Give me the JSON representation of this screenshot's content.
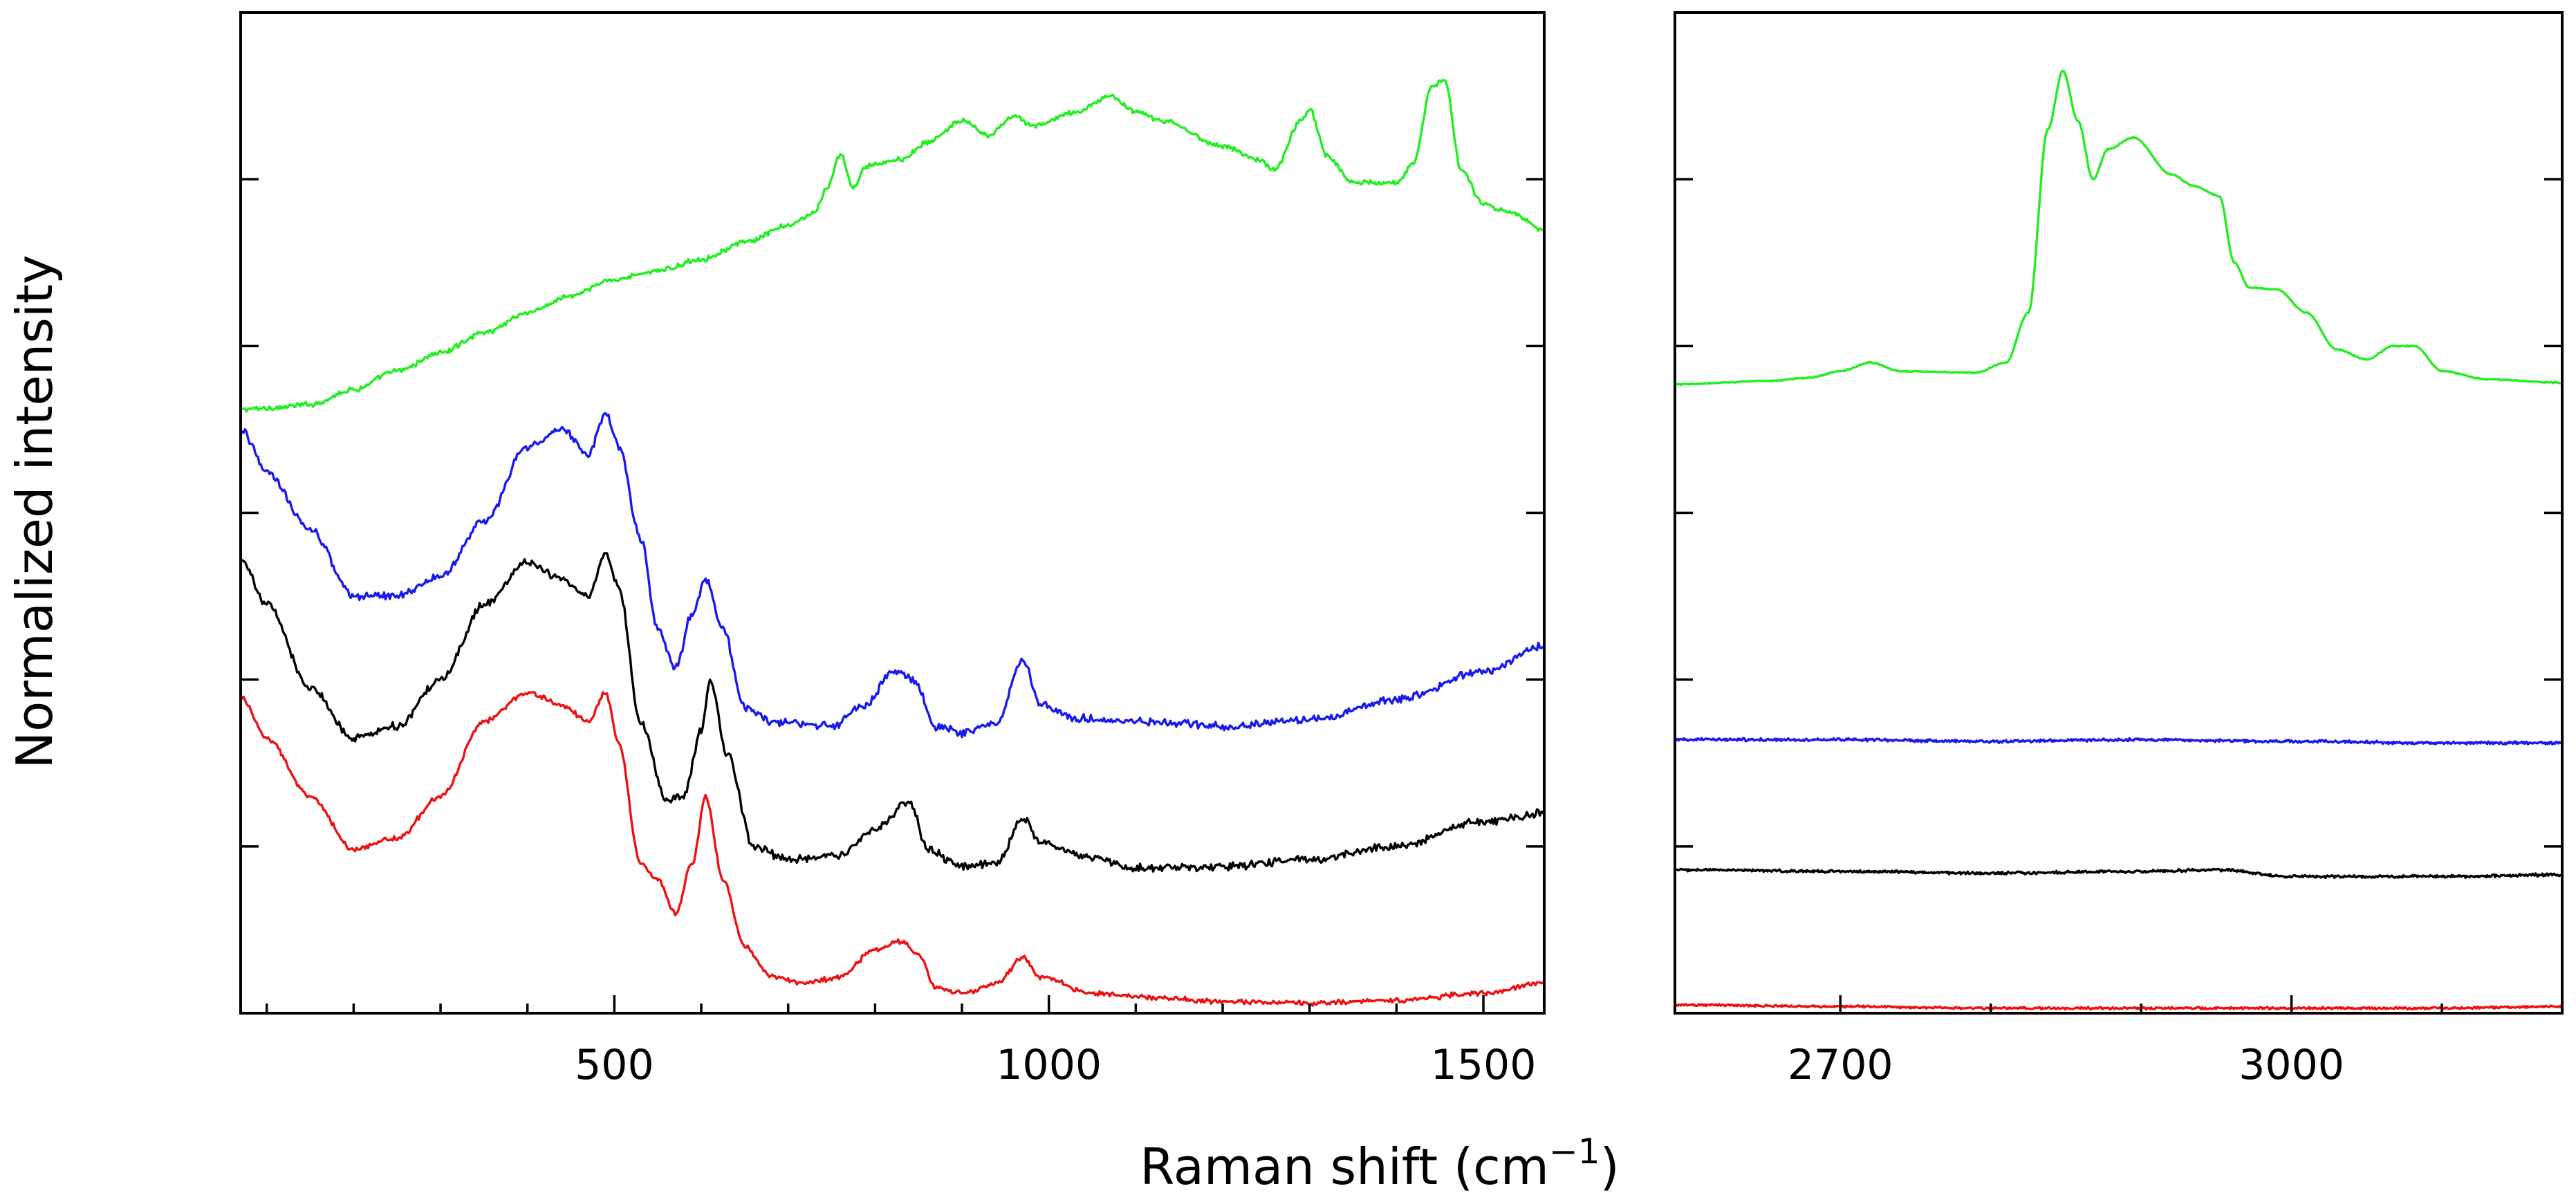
{
  "chart_data": {
    "type": "line",
    "title": "",
    "xlabel": "Raman shift (cm",
    "xlabel_sup": "−1",
    "xlabel_close": ")",
    "ylabel": "Normalized intensity",
    "yticks_labeled": false,
    "grid": false,
    "legend": "none",
    "panels": [
      {
        "name": "low-wavenumber",
        "xlim": [
          70,
          1570
        ],
        "ylim": [
          0,
          6
        ],
        "xticks": [
          {
            "value": 500,
            "label": "500"
          },
          {
            "value": 1000,
            "label": "1000"
          },
          {
            "value": 1500,
            "label": "1500"
          }
        ],
        "minor_xticks": [
          100,
          200,
          300,
          400,
          600,
          700,
          800,
          900,
          1100,
          1200,
          1300,
          1400
        ],
        "yticks": [
          1,
          2,
          3,
          4,
          5
        ],
        "series": [
          {
            "name": "green",
            "color": "#22ee22",
            "noise": 0.018,
            "points": [
              [
                70,
                3.62
              ],
              [
                110,
                3.63
              ],
              [
                150,
                3.65
              ],
              [
                200,
                3.74
              ],
              [
                250,
                3.85
              ],
              [
                300,
                3.96
              ],
              [
                350,
                4.08
              ],
              [
                400,
                4.2
              ],
              [
                450,
                4.3
              ],
              [
                500,
                4.4
              ],
              [
                550,
                4.45
              ],
              [
                600,
                4.52
              ],
              [
                650,
                4.62
              ],
              [
                700,
                4.72
              ],
              [
                730,
                4.8
              ],
              [
                745,
                4.95
              ],
              [
                760,
                5.15
              ],
              [
                775,
                4.95
              ],
              [
                790,
                5.08
              ],
              [
                830,
                5.12
              ],
              [
                860,
                5.22
              ],
              [
                900,
                5.35
              ],
              [
                930,
                5.26
              ],
              [
                960,
                5.38
              ],
              [
                980,
                5.32
              ],
              [
                1030,
                5.4
              ],
              [
                1070,
                5.5
              ],
              [
                1100,
                5.4
              ],
              [
                1130,
                5.35
              ],
              [
                1200,
                5.2
              ],
              [
                1240,
                5.12
              ],
              [
                1260,
                5.06
              ],
              [
                1290,
                5.35
              ],
              [
                1300,
                5.42
              ],
              [
                1320,
                5.14
              ],
              [
                1350,
                4.98
              ],
              [
                1400,
                4.98
              ],
              [
                1420,
                5.1
              ],
              [
                1440,
                5.55
              ],
              [
                1455,
                5.6
              ],
              [
                1475,
                5.05
              ],
              [
                1500,
                4.85
              ],
              [
                1530,
                4.8
              ],
              [
                1570,
                4.7
              ]
            ]
          },
          {
            "name": "blue",
            "color": "#1a1aee",
            "noise": 0.028,
            "points": [
              [
                70,
                3.5
              ],
              [
                100,
                3.25
              ],
              [
                150,
                2.9
              ],
              [
                200,
                2.5
              ],
              [
                250,
                2.5
              ],
              [
                300,
                2.62
              ],
              [
                350,
                2.95
              ],
              [
                400,
                3.4
              ],
              [
                440,
                3.5
              ],
              [
                470,
                3.35
              ],
              [
                490,
                3.6
              ],
              [
                505,
                3.4
              ],
              [
                530,
                2.85
              ],
              [
                550,
                2.3
              ],
              [
                570,
                2.07
              ],
              [
                590,
                2.4
              ],
              [
                605,
                2.6
              ],
              [
                625,
                2.3
              ],
              [
                650,
                1.83
              ],
              [
                680,
                1.75
              ],
              [
                750,
                1.72
              ],
              [
                790,
                1.85
              ],
              [
                820,
                2.05
              ],
              [
                845,
                2.0
              ],
              [
                870,
                1.72
              ],
              [
                900,
                1.68
              ],
              [
                940,
                1.74
              ],
              [
                970,
                2.12
              ],
              [
                990,
                1.85
              ],
              [
                1030,
                1.77
              ],
              [
                1100,
                1.75
              ],
              [
                1200,
                1.72
              ],
              [
                1300,
                1.76
              ],
              [
                1400,
                1.88
              ],
              [
                1500,
                2.05
              ],
              [
                1570,
                2.2
              ]
            ]
          },
          {
            "name": "black",
            "color": "#000000",
            "noise": 0.028,
            "points": [
              [
                70,
                2.72
              ],
              [
                100,
                2.45
              ],
              [
                150,
                1.95
              ],
              [
                200,
                1.65
              ],
              [
                250,
                1.72
              ],
              [
                300,
                2.0
              ],
              [
                350,
                2.45
              ],
              [
                400,
                2.7
              ],
              [
                440,
                2.6
              ],
              [
                470,
                2.5
              ],
              [
                490,
                2.75
              ],
              [
                505,
                2.55
              ],
              [
                530,
                1.75
              ],
              [
                560,
                1.28
              ],
              [
                580,
                1.3
              ],
              [
                600,
                1.7
              ],
              [
                610,
                2.0
              ],
              [
                630,
                1.55
              ],
              [
                660,
                1.0
              ],
              [
                700,
                0.92
              ],
              [
                760,
                0.95
              ],
              [
                800,
                1.1
              ],
              [
                840,
                1.27
              ],
              [
                860,
                0.98
              ],
              [
                900,
                0.88
              ],
              [
                940,
                0.9
              ],
              [
                970,
                1.17
              ],
              [
                990,
                1.02
              ],
              [
                1050,
                0.93
              ],
              [
                1100,
                0.87
              ],
              [
                1200,
                0.88
              ],
              [
                1300,
                0.92
              ],
              [
                1400,
                1.0
              ],
              [
                1500,
                1.15
              ],
              [
                1570,
                1.2
              ]
            ]
          },
          {
            "name": "red",
            "color": "#ee1111",
            "noise": 0.018,
            "points": [
              [
                70,
                1.9
              ],
              [
                100,
                1.65
              ],
              [
                150,
                1.3
              ],
              [
                200,
                0.98
              ],
              [
                250,
                1.05
              ],
              [
                300,
                1.3
              ],
              [
                350,
                1.75
              ],
              [
                400,
                1.92
              ],
              [
                440,
                1.85
              ],
              [
                470,
                1.75
              ],
              [
                490,
                1.92
              ],
              [
                505,
                1.62
              ],
              [
                530,
                0.9
              ],
              [
                550,
                0.8
              ],
              [
                570,
                0.6
              ],
              [
                590,
                0.9
              ],
              [
                605,
                1.3
              ],
              [
                625,
                0.8
              ],
              [
                650,
                0.4
              ],
              [
                680,
                0.22
              ],
              [
                720,
                0.18
              ],
              [
                760,
                0.22
              ],
              [
                800,
                0.38
              ],
              [
                830,
                0.43
              ],
              [
                850,
                0.35
              ],
              [
                870,
                0.15
              ],
              [
                900,
                0.12
              ],
              [
                940,
                0.18
              ],
              [
                970,
                0.33
              ],
              [
                990,
                0.22
              ],
              [
                1050,
                0.12
              ],
              [
                1100,
                0.1
              ],
              [
                1200,
                0.07
              ],
              [
                1300,
                0.06
              ],
              [
                1400,
                0.08
              ],
              [
                1500,
                0.12
              ],
              [
                1570,
                0.18
              ]
            ]
          }
        ]
      },
      {
        "name": "high-wavenumber",
        "xlim": [
          2590,
          3180
        ],
        "ylim": [
          0,
          6
        ],
        "xticks": [
          {
            "value": 2700,
            "label": "2700"
          },
          {
            "value": 3000,
            "label": "3000"
          }
        ],
        "minor_xticks": [
          2800,
          2900,
          3100
        ],
        "yticks": [
          1,
          2,
          3,
          4,
          5
        ],
        "series": [
          {
            "name": "green",
            "color": "#22ee22",
            "noise": 0.004,
            "points": [
              [
                2590,
                3.77
              ],
              [
                2650,
                3.79
              ],
              [
                2680,
                3.81
              ],
              [
                2700,
                3.85
              ],
              [
                2720,
                3.9
              ],
              [
                2740,
                3.85
              ],
              [
                2790,
                3.84
              ],
              [
                2810,
                3.9
              ],
              [
                2825,
                4.2
              ],
              [
                2838,
                5.3
              ],
              [
                2848,
                5.65
              ],
              [
                2858,
                5.35
              ],
              [
                2868,
                5.0
              ],
              [
                2878,
                5.18
              ],
              [
                2895,
                5.25
              ],
              [
                2920,
                5.03
              ],
              [
                2935,
                4.96
              ],
              [
                2952,
                4.9
              ],
              [
                2962,
                4.5
              ],
              [
                2972,
                4.35
              ],
              [
                2990,
                4.34
              ],
              [
                3010,
                4.2
              ],
              [
                3030,
                3.98
              ],
              [
                3050,
                3.92
              ],
              [
                3068,
                4.0
              ],
              [
                3082,
                4.0
              ],
              [
                3100,
                3.85
              ],
              [
                3130,
                3.8
              ],
              [
                3180,
                3.78
              ]
            ]
          },
          {
            "name": "blue",
            "color": "#1a1aee",
            "noise": 0.01,
            "points": [
              [
                2590,
                1.64
              ],
              [
                2700,
                1.64
              ],
              [
                2800,
                1.63
              ],
              [
                2900,
                1.64
              ],
              [
                3000,
                1.63
              ],
              [
                3100,
                1.62
              ],
              [
                3180,
                1.62
              ]
            ]
          },
          {
            "name": "black",
            "color": "#000000",
            "noise": 0.01,
            "points": [
              [
                2590,
                0.86
              ],
              [
                2700,
                0.85
              ],
              [
                2800,
                0.84
              ],
              [
                2900,
                0.85
              ],
              [
                2950,
                0.86
              ],
              [
                3000,
                0.82
              ],
              [
                3100,
                0.82
              ],
              [
                3180,
                0.83
              ]
            ]
          },
          {
            "name": "red",
            "color": "#ee1111",
            "noise": 0.008,
            "points": [
              [
                2590,
                0.05
              ],
              [
                2700,
                0.04
              ],
              [
                2800,
                0.03
              ],
              [
                2900,
                0.03
              ],
              [
                3000,
                0.03
              ],
              [
                3100,
                0.03
              ],
              [
                3180,
                0.04
              ]
            ]
          }
        ]
      }
    ]
  }
}
